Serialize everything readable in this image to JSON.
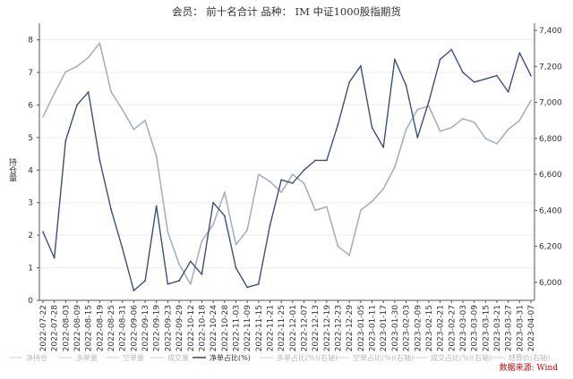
{
  "chart_data": {
    "type": "line",
    "title": "会员： 前十名合计 品种： IM 中证1000股指期货",
    "ylabel": "持仓量",
    "source": "数据来源: Wind",
    "grid": true,
    "legend_position": "bottom",
    "colors": {
      "net": "#3d4f7c",
      "price": "#a9b0be",
      "axis": "#555555"
    },
    "ylim_left": [
      0,
      8.4
    ],
    "yticks_left": [
      0,
      1,
      2,
      3,
      4,
      5,
      6,
      7,
      8
    ],
    "ylim_right": [
      5900,
      7420
    ],
    "yticks_right": [
      6000,
      6200,
      6400,
      6600,
      6800,
      7000,
      7200,
      7400
    ],
    "ytick_labels_right": [
      "6,000",
      "6,200",
      "6,400",
      "6,600",
      "6,800",
      "7,000",
      "7,200",
      "7,400"
    ],
    "x_tick_labels": [
      "2022-07-22",
      "2022-07-28",
      "2022-08-03",
      "2022-08-09",
      "2022-08-15",
      "2022-08-19",
      "2022-08-25",
      "2022-08-31",
      "2022-09-06",
      "2022-09-13",
      "2022-09-19",
      "2022-09-23",
      "2022-09-29",
      "2022-10-12",
      "2022-10-18",
      "2022-10-24",
      "2022-10-28",
      "2022-11-03",
      "2022-11-09",
      "2022-11-15",
      "2022-11-21",
      "2022-11-25",
      "2022-12-01",
      "2022-12-07",
      "2022-12-13",
      "2022-12-19",
      "2022-12-23",
      "2022-12-29",
      "2023-01-05",
      "2023-01-11",
      "2023-01-17",
      "2023-01-30",
      "2023-02-03",
      "2023-02-09",
      "2023-02-15",
      "2023-02-21",
      "2023-02-27",
      "2023-03-03",
      "2023-03-09",
      "2023-03-15",
      "2023-03-21",
      "2023-03-27",
      "2023-03-31",
      "2023-04-07"
    ],
    "legend": [
      "净持仓",
      "多单量",
      "空单量",
      "成交量",
      "净单占比(%)",
      "多单占比(%)(右轴)",
      "空单占比(%)(右轴)",
      "成交占比(%)(右轴)",
      "结算价(右轴)"
    ],
    "series": [
      {
        "name": "净单占比(%)",
        "axis": "left",
        "x": [
          0,
          1,
          2,
          3,
          4,
          5,
          6,
          7,
          8,
          9,
          10,
          11,
          12,
          13,
          14,
          15,
          16,
          17,
          18,
          19,
          20,
          21,
          22,
          23,
          24,
          25,
          26,
          27,
          28,
          29,
          30,
          31,
          32,
          33,
          34,
          35,
          36,
          37,
          38,
          39,
          40,
          41,
          42,
          43
        ],
        "values": [
          2.1,
          1.3,
          4.9,
          6.0,
          6.4,
          4.3,
          2.8,
          1.6,
          0.3,
          0.6,
          2.9,
          0.5,
          0.6,
          1.2,
          0.8,
          3.0,
          2.6,
          1.0,
          0.4,
          0.5,
          2.3,
          3.7,
          3.6,
          4.0,
          4.3,
          4.3,
          5.4,
          6.7,
          7.2,
          5.3,
          4.7,
          7.4,
          6.6,
          5.0,
          6.1,
          7.4,
          7.7,
          7.0,
          6.7,
          6.8,
          6.9,
          6.4,
          7.6,
          6.9
        ]
      },
      {
        "name": "结算价(右轴)",
        "axis": "right",
        "x": [
          0,
          1,
          2,
          3,
          4,
          5,
          6,
          7,
          8,
          9,
          10,
          11,
          12,
          13,
          14,
          15,
          16,
          17,
          18,
          19,
          20,
          21,
          22,
          23,
          24,
          25,
          26,
          27,
          28,
          29,
          30,
          31,
          32,
          33,
          34,
          35,
          36,
          37,
          38,
          39,
          40,
          41,
          42,
          43
        ],
        "values": [
          6920,
          7050,
          7170,
          7200,
          7250,
          7330,
          7060,
          6960,
          6850,
          6900,
          6700,
          6280,
          6100,
          5990,
          6230,
          6320,
          6500,
          6210,
          6290,
          6600,
          6560,
          6500,
          6600,
          6550,
          6400,
          6420,
          6200,
          6150,
          6400,
          6450,
          6520,
          6640,
          6850,
          6960,
          6980,
          6840,
          6860,
          6910,
          6890,
          6800,
          6770,
          6850,
          6900,
          7010
        ]
      }
    ]
  }
}
